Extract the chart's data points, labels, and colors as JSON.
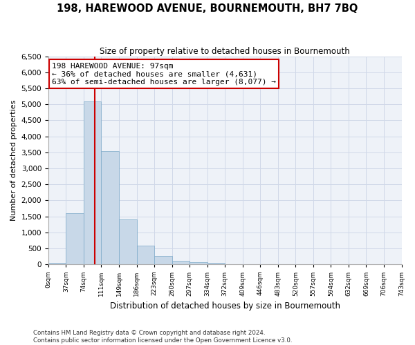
{
  "title": "198, HAREWOOD AVENUE, BOURNEMOUTH, BH7 7BQ",
  "subtitle": "Size of property relative to detached houses in Bournemouth",
  "xlabel": "Distribution of detached houses by size in Bournemouth",
  "ylabel": "Number of detached properties",
  "bin_labels": [
    "0sqm",
    "37sqm",
    "74sqm",
    "111sqm",
    "149sqm",
    "186sqm",
    "223sqm",
    "260sqm",
    "297sqm",
    "334sqm",
    "372sqm",
    "409sqm",
    "446sqm",
    "483sqm",
    "520sqm",
    "557sqm",
    "594sqm",
    "632sqm",
    "669sqm",
    "706sqm",
    "743sqm"
  ],
  "bar_heights": [
    50,
    1600,
    5100,
    3550,
    1400,
    580,
    270,
    120,
    80,
    50,
    0,
    0,
    0,
    0,
    0,
    0,
    0,
    0,
    0,
    0
  ],
  "bar_color": "#c8d8e8",
  "bar_edge_color": "#7aa8c8",
  "property_line_bin": 2.622,
  "annotation_text": "198 HAREWOOD AVENUE: 97sqm\n← 36% of detached houses are smaller (4,631)\n63% of semi-detached houses are larger (8,077) →",
  "annotation_box_color": "#ffffff",
  "annotation_box_edge": "#cc0000",
  "vline_color": "#cc0000",
  "ylim": [
    0,
    6500
  ],
  "yticks": [
    0,
    500,
    1000,
    1500,
    2000,
    2500,
    3000,
    3500,
    4000,
    4500,
    5000,
    5500,
    6000,
    6500
  ],
  "footer_line1": "Contains HM Land Registry data © Crown copyright and database right 2024.",
  "footer_line2": "Contains public sector information licensed under the Open Government Licence v3.0.",
  "grid_color": "#d0d8e8",
  "background_color": "#eef2f8"
}
